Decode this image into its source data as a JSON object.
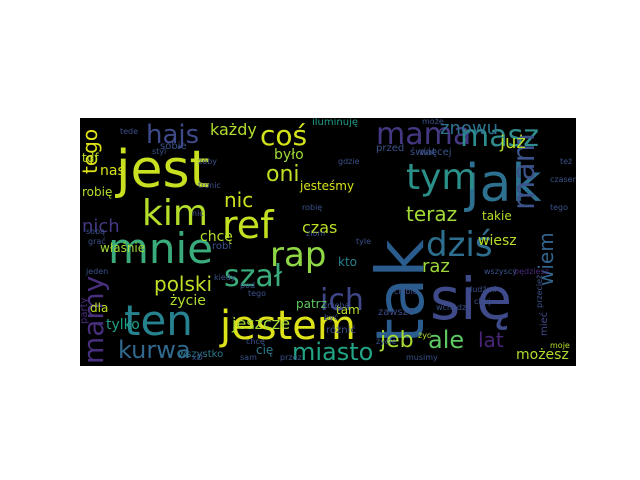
{
  "wordcloud": {
    "background": "#000000",
    "palette": [
      "#440154",
      "#482878",
      "#3e4989",
      "#31688e",
      "#26828e",
      "#1f9e89",
      "#35b779",
      "#6ece58",
      "#b5de2b",
      "#fde725"
    ],
    "words": [
      {
        "text": "nie",
        "color": "#2f5f8a"
      },
      {
        "text": "jest",
        "color": "#c8e020"
      },
      {
        "text": "się",
        "color": "#3f4a8a"
      },
      {
        "text": "jak",
        "color": "#2d7090"
      },
      {
        "text": "tak",
        "color": "#2a5c8d"
      },
      {
        "text": "jestem",
        "color": "#dde318"
      },
      {
        "text": "ten",
        "color": "#26828e"
      },
      {
        "text": "mnie",
        "color": "#3aab7a"
      },
      {
        "text": "mama",
        "color": "#453781"
      },
      {
        "text": "masz",
        "color": "#2f8c8c"
      },
      {
        "text": "tym",
        "color": "#2b8f8a"
      },
      {
        "text": "ref",
        "color": "#c5e021"
      },
      {
        "text": "rap",
        "color": "#8fd744"
      },
      {
        "text": "kim",
        "color": "#b5de2b"
      },
      {
        "text": "coś",
        "color": "#d2e21b"
      },
      {
        "text": "dziś",
        "color": "#2e6e8e"
      },
      {
        "text": "mam",
        "color": "#3b528b"
      },
      {
        "text": "hajs",
        "color": "#3e4a89"
      },
      {
        "text": "szał",
        "color": "#3aab7a"
      },
      {
        "text": "ich",
        "color": "#3f4788"
      },
      {
        "text": "kurwa",
        "color": "#31688e"
      },
      {
        "text": "miasto",
        "color": "#21a585"
      },
      {
        "text": "polski",
        "color": "#c0df25"
      },
      {
        "text": "mamy",
        "color": "#472f7d"
      },
      {
        "text": "jeb",
        "color": "#a8db34"
      },
      {
        "text": "ale",
        "color": "#5ec962"
      },
      {
        "text": "lat",
        "color": "#482576"
      },
      {
        "text": "tego",
        "color": "#dfe318"
      },
      {
        "text": "oni",
        "color": "#c2df23"
      },
      {
        "text": "teraz",
        "color": "#a2da37"
      },
      {
        "text": "już",
        "color": "#bade28"
      },
      {
        "text": "znowu",
        "color": "#2c728e"
      },
      {
        "text": "raz",
        "color": "#9dd93b"
      },
      {
        "text": "wiem",
        "color": "#33638d"
      },
      {
        "text": "nic",
        "color": "#cde11d"
      },
      {
        "text": "nich",
        "color": "#443a83"
      },
      {
        "text": "każdy",
        "color": "#b2dd2d"
      },
      {
        "text": "było",
        "color": "#a0da39"
      },
      {
        "text": "czas",
        "color": "#bddf26"
      },
      {
        "text": "jeszcze",
        "color": "#a5db36"
      },
      {
        "text": "możesz",
        "color": "#b0dd2f"
      },
      {
        "text": "tylko",
        "color": "#1fa088"
      },
      {
        "text": "nas",
        "color": "#d8e219"
      },
      {
        "text": "wiesz",
        "color": "#b8de29"
      },
      {
        "text": "takie",
        "color": "#b5de2b"
      },
      {
        "text": "chcę",
        "color": "#b5de2b"
      },
      {
        "text": "jesteśmy",
        "color": "#d5e21a"
      },
      {
        "text": "właśnie",
        "color": "#a2da37"
      },
      {
        "text": "życie",
        "color": "#b0dd2f"
      },
      {
        "text": "dla",
        "color": "#bddf26"
      },
      {
        "text": "robię",
        "color": "#b2dd2d"
      },
      {
        "text": "tdf",
        "color": "#bddf26"
      },
      {
        "text": "kto",
        "color": "#27808e"
      },
      {
        "text": "patrz",
        "color": "#5ec962"
      },
      {
        "text": "zawsze",
        "color": "#3e4c8a"
      },
      {
        "text": "mieć",
        "color": "#3f4889"
      },
      {
        "text": "party",
        "color": "#482878"
      },
      {
        "text": "wszystko",
        "color": "#2a788e"
      },
      {
        "text": "cię",
        "color": "#2a788e"
      },
      {
        "text": "tam",
        "color": "#b8de29"
      },
      {
        "text": "sobie",
        "color": "#3b528b"
      },
      {
        "text": "iluminuję",
        "color": "#1f9e89"
      },
      {
        "text": "świat",
        "color": "#3b528b"
      },
      {
        "text": "więcej",
        "color": "#3b528b"
      },
      {
        "text": "przed",
        "color": "#3b528b"
      },
      {
        "text": "gdzie",
        "color": "#3b528b"
      },
      {
        "text": "życie",
        "color": "#3b528b"
      },
      {
        "text": "robi",
        "color": "#3b528b"
      },
      {
        "text": "kiedy",
        "color": "#3b528b"
      },
      {
        "text": "różnić",
        "color": "#3b528b"
      },
      {
        "text": "będziesz",
        "color": "#482878"
      },
      {
        "text": "ciebie",
        "color": "#3b528b"
      },
      {
        "text": "może",
        "color": "#3b528b"
      },
      {
        "text": "moje",
        "color": "#b5de2b"
      },
      {
        "text": "życ",
        "color": "#b5de2b"
      },
      {
        "text": "wchodzi",
        "color": "#3b528b"
      },
      {
        "text": "ludźmi",
        "color": "#3b528b"
      },
      {
        "text": "czasem",
        "color": "#3b528b"
      },
      {
        "text": "tego",
        "color": "#3b528b"
      },
      {
        "text": "styl",
        "color": "#3b528b"
      },
      {
        "text": "żeby",
        "color": "#3b528b"
      },
      {
        "text": "tronic",
        "color": "#3b528b"
      },
      {
        "text": "tyle",
        "color": "#3b528b"
      },
      {
        "text": "przez",
        "color": "#3b528b"
      },
      {
        "text": "musimy",
        "color": "#3b528b"
      },
      {
        "text": "sam",
        "color": "#3b528b"
      },
      {
        "text": "być",
        "color": "#3b528b"
      },
      {
        "text": "trzeba",
        "color": "#3b528b"
      },
      {
        "text": "przecież",
        "color": "#3b528b"
      },
      {
        "text": "wszyscy",
        "color": "#3b528b"
      },
      {
        "text": "chcę",
        "color": "#3b528b"
      },
      {
        "text": "robię",
        "color": "#3b528b"
      },
      {
        "text": "tego",
        "color": "#3b528b"
      },
      {
        "text": "też",
        "color": "#3b528b"
      },
      {
        "text": "nic",
        "color": "#3b528b"
      },
      {
        "text": "sobą",
        "color": "#3b528b"
      },
      {
        "text": "tede",
        "color": "#3b528b"
      },
      {
        "text": "pod",
        "color": "#3b528b"
      },
      {
        "text": "jeden",
        "color": "#3b528b"
      },
      {
        "text": "grać",
        "color": "#3b528b"
      },
      {
        "text": "ziom",
        "color": "#3b528b"
      },
      {
        "text": "xD",
        "color": "#3b528b"
      },
      {
        "text": "chuj",
        "color": "#3b528b"
      }
    ]
  }
}
